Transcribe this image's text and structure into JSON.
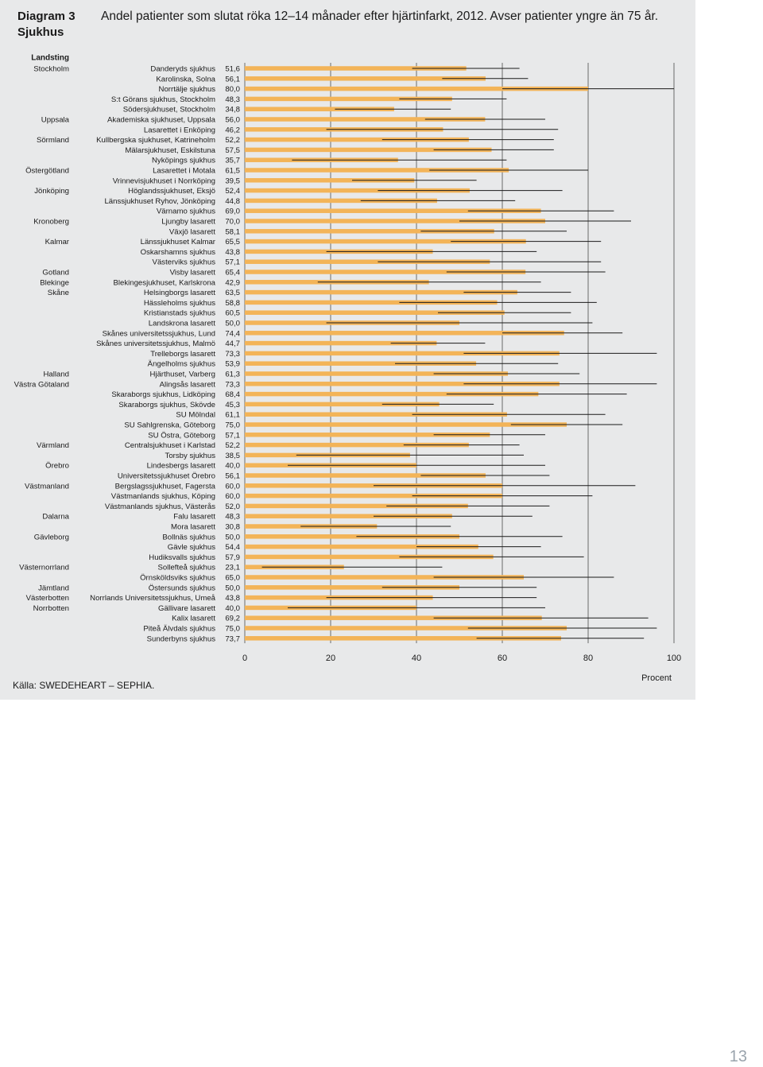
{
  "header": {
    "diagram_label": "Diagram 3",
    "diagram_subject": "Sjukhus",
    "title": "Andel patienter som slutat röka 12–14 månader efter hjärtinfarkt, 2012. Avser patienter yngre än 75 år."
  },
  "source": "Källa: SWEDEHEART – SEPHIA.",
  "page_number": "13",
  "colors": {
    "bar": "#f3b458",
    "panel": "#e8e9ea",
    "line": "#1a1a1a"
  },
  "chart_data": {
    "type": "bar",
    "orientation": "horizontal",
    "region_header": "Landsting",
    "xlabel": "Procent",
    "xlim": [
      0,
      100
    ],
    "xticks": [
      0,
      20,
      40,
      60,
      80,
      100
    ],
    "categories": [
      "Danderyds sjukhus",
      "Karolinska, Solna",
      "Norrtälje sjukhus",
      "S:t Görans sjukhus, Stockholm",
      "Södersjukhuset, Stockholm",
      "Akademiska sjukhuset, Uppsala",
      "Lasarettet i Enköping",
      "Kullbergska sjukhuset, Katrineholm",
      "Mälarsjukhuset, Eskilstuna",
      "Nyköpings sjukhus",
      "Lasarettet i Motala",
      "Vrinnevisjukhuset i Norrköping",
      "Höglandssjukhuset, Eksjö",
      "Länssjukhuset Ryhov, Jönköping",
      "Värnamo sjukhus",
      "Ljungby lasarett",
      "Växjö lasarett",
      "Länssjukhuset Kalmar",
      "Oskarshamns sjukhus",
      "Västerviks sjukhus",
      "Visby lasarett",
      "Blekingesjukhuset, Karlskrona",
      "Helsingborgs lasarett",
      "Hässleholms sjukhus",
      "Kristianstads sjukhus",
      "Landskrona lasarett",
      "Skånes universitetssjukhus, Lund",
      "Skånes universitetssjukhus, Malmö",
      "Trelleborgs lasarett",
      "Ängelholms sjukhus",
      "Hjärthuset, Varberg",
      "Alingsås lasarett",
      "Skaraborgs sjukhus, Lidköping",
      "Skaraborgs sjukhus, Skövde",
      "SU Mölndal",
      "SU Sahlgrenska, Göteborg",
      "SU Östra, Göteborg",
      "Centralsjukhuset i Karlstad",
      "Torsby sjukhus",
      "Lindesbergs lasarett",
      "Universitetssjukhuset Örebro",
      "Bergslagssjukhuset, Fagersta",
      "Västmanlands sjukhus, Köping",
      "Västmanlands sjukhus, Västerås",
      "Falu lasarett",
      "Mora lasarett",
      "Bollnäs sjukhus",
      "Gävle sjukhus",
      "Hudiksvalls sjukhus",
      "Sollefteå sjukhus",
      "Örnsköldsviks sjukhus",
      "Östersunds sjukhus",
      "Norrlands Universitetssjukhus, Umeå",
      "Gällivare lasarett",
      "Kalix lasarett",
      "Piteå Älvdals sjukhus",
      "Sunderbyns sjukhus"
    ],
    "value_labels": [
      "51,6",
      "56,1",
      "80,0",
      "48,3",
      "34,8",
      "56,0",
      "46,2",
      "52,2",
      "57,5",
      "35,7",
      "61,5",
      "39,5",
      "52,4",
      "44,8",
      "69,0",
      "70,0",
      "58,1",
      "65,5",
      "43,8",
      "57,1",
      "65,4",
      "42,9",
      "63,5",
      "58,8",
      "60,5",
      "50,0",
      "74,4",
      "44,7",
      "73,3",
      "53,9",
      "61,3",
      "73,3",
      "68,4",
      "45,3",
      "61,1",
      "75,0",
      "57,1",
      "52,2",
      "38,5",
      "40,0",
      "56,1",
      "60,0",
      "60,0",
      "52,0",
      "48,3",
      "30,8",
      "50,0",
      "54,4",
      "57,9",
      "23,1",
      "65,0",
      "50,0",
      "43,8",
      "40,0",
      "69,2",
      "75,0",
      "73,7"
    ],
    "values": [
      51.6,
      56.1,
      80.0,
      48.3,
      34.8,
      56.0,
      46.2,
      52.2,
      57.5,
      35.7,
      61.5,
      39.5,
      52.4,
      44.8,
      69.0,
      70.0,
      58.1,
      65.5,
      43.8,
      57.1,
      65.4,
      42.9,
      63.5,
      58.8,
      60.5,
      50.0,
      74.4,
      44.7,
      73.3,
      53.9,
      61.3,
      73.3,
      68.4,
      45.3,
      61.1,
      75.0,
      57.1,
      52.2,
      38.5,
      40.0,
      56.1,
      60.0,
      60.0,
      52.0,
      48.3,
      30.8,
      50.0,
      54.4,
      57.9,
      23.1,
      65.0,
      50.0,
      43.8,
      40.0,
      69.2,
      75.0,
      73.7
    ],
    "ci_low": [
      39,
      46,
      60,
      36,
      21,
      42,
      19,
      32,
      44,
      11,
      43,
      25,
      31,
      27,
      52,
      50,
      41,
      48,
      19,
      31,
      47,
      17,
      51,
      36,
      45,
      19,
      60,
      34,
      51,
      35,
      44,
      51,
      47,
      32,
      39,
      62,
      44,
      37,
      12,
      10,
      41,
      30,
      39,
      33,
      30,
      13,
      26,
      40,
      36,
      4,
      44,
      32,
      19,
      10,
      44,
      52,
      54
    ],
    "ci_high": [
      64,
      66,
      100,
      61,
      48,
      70,
      73,
      72,
      72,
      61,
      80,
      54,
      74,
      63,
      86,
      90,
      75,
      83,
      68,
      83,
      84,
      69,
      76,
      82,
      76,
      81,
      88,
      56,
      96,
      73,
      78,
      96,
      89,
      58,
      84,
      88,
      70,
      64,
      65,
      70,
      71,
      91,
      81,
      71,
      67,
      48,
      74,
      69,
      79,
      46,
      86,
      68,
      68,
      70,
      94,
      96,
      93
    ],
    "regions": [
      {
        "name": "Stockholm",
        "row": 0
      },
      {
        "name": "Uppsala",
        "row": 5
      },
      {
        "name": "Sörmland",
        "row": 7
      },
      {
        "name": "Östergötland",
        "row": 10
      },
      {
        "name": "Jönköping",
        "row": 12
      },
      {
        "name": "Kronoberg",
        "row": 15
      },
      {
        "name": "Kalmar",
        "row": 17
      },
      {
        "name": "Gotland",
        "row": 20
      },
      {
        "name": "Blekinge",
        "row": 21
      },
      {
        "name": "Skåne",
        "row": 22
      },
      {
        "name": "Halland",
        "row": 30
      },
      {
        "name": "Västra Götaland",
        "row": 31
      },
      {
        "name": "Värmland",
        "row": 37
      },
      {
        "name": "Örebro",
        "row": 39
      },
      {
        "name": "Västmanland",
        "row": 41
      },
      {
        "name": "Dalarna",
        "row": 44
      },
      {
        "name": "Gävleborg",
        "row": 46
      },
      {
        "name": "Västernorrland",
        "row": 49
      },
      {
        "name": "Jämtland",
        "row": 51
      },
      {
        "name": "Västerbotten",
        "row": 52
      },
      {
        "name": "Norrbotten",
        "row": 53
      }
    ],
    "grid": "vertical",
    "legend": "none"
  }
}
